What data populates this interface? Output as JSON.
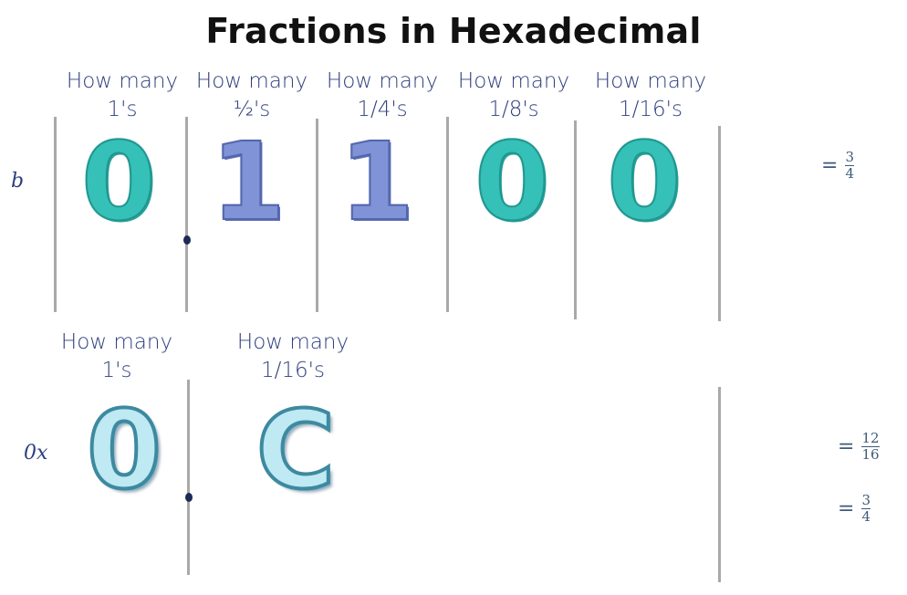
{
  "title": "Fractions in Hexadecimal",
  "binary_row": {
    "prefix": "b",
    "columns": [
      {
        "header1": "How many",
        "header2": "1's",
        "digit": "0"
      },
      {
        "header1": "How many",
        "header2": "½'s",
        "digit": "1"
      },
      {
        "header1": "How many",
        "header2": "1/4's",
        "digit": "1"
      },
      {
        "header1": "How many",
        "header2": "1/8's",
        "digit": "0"
      },
      {
        "header1": "How many",
        "header2": "1/16's",
        "digit": "0"
      }
    ],
    "result": {
      "symbol": "=",
      "numerator": "3",
      "denominator": "4"
    }
  },
  "hex_row": {
    "prefix": "0x",
    "columns": [
      {
        "header1": "How many",
        "header2": "1's",
        "digit": "0"
      },
      {
        "header1": "How many",
        "header2": "1/16's",
        "digit": "C"
      }
    ],
    "results": [
      {
        "symbol": "=",
        "numerator": "12",
        "denominator": "16"
      },
      {
        "symbol": "=",
        "numerator": "3",
        "denominator": "4"
      }
    ]
  },
  "colors": {
    "binary_zero": "#35c0b8",
    "binary_one": "#7f93d6",
    "hex_digit": "#bfe9f3",
    "header_text": "#2f3f7e",
    "divider": "#a9a9a9"
  }
}
